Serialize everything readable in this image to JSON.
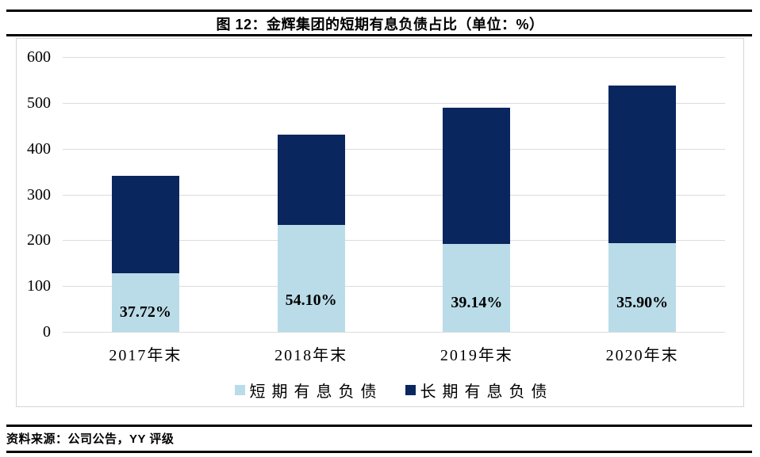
{
  "figure": {
    "title": "图 12：金辉集团的短期有息负债占比（单位：%）"
  },
  "source": {
    "text": "资料来源：公司公告，YY 评级"
  },
  "colors": {
    "short_term": "#B9DCE8",
    "long_term": "#09265E",
    "gridline": "#DCDCDC",
    "frame_border": "#D6D6D6",
    "rule": "#000000",
    "text": "#000000"
  },
  "chart_data": {
    "type": "bar",
    "stacked": true,
    "title": "图 12：金辉集团的短期有息负债占比（单位：%）",
    "unit": "%",
    "categories": [
      "2017年末",
      "2018年末",
      "2019年末",
      "2020年末"
    ],
    "series": [
      {
        "name": "短期有息负债",
        "color": "#B9DCE8",
        "values": [
          128,
          233,
          192,
          193
        ]
      },
      {
        "name": "长期有息负债",
        "color": "#09265E",
        "values": [
          212,
          198,
          298,
          344
        ]
      }
    ],
    "totals": [
      340,
      431,
      490,
      537
    ],
    "percent_labels": [
      "37.72%",
      "54.10%",
      "39.14%",
      "35.90%"
    ],
    "xlabel": "",
    "ylabel": "",
    "ylim": [
      0,
      600
    ],
    "yticks": [
      0,
      100,
      200,
      300,
      400,
      500,
      600
    ],
    "grid": true,
    "legend_position": "bottom"
  }
}
